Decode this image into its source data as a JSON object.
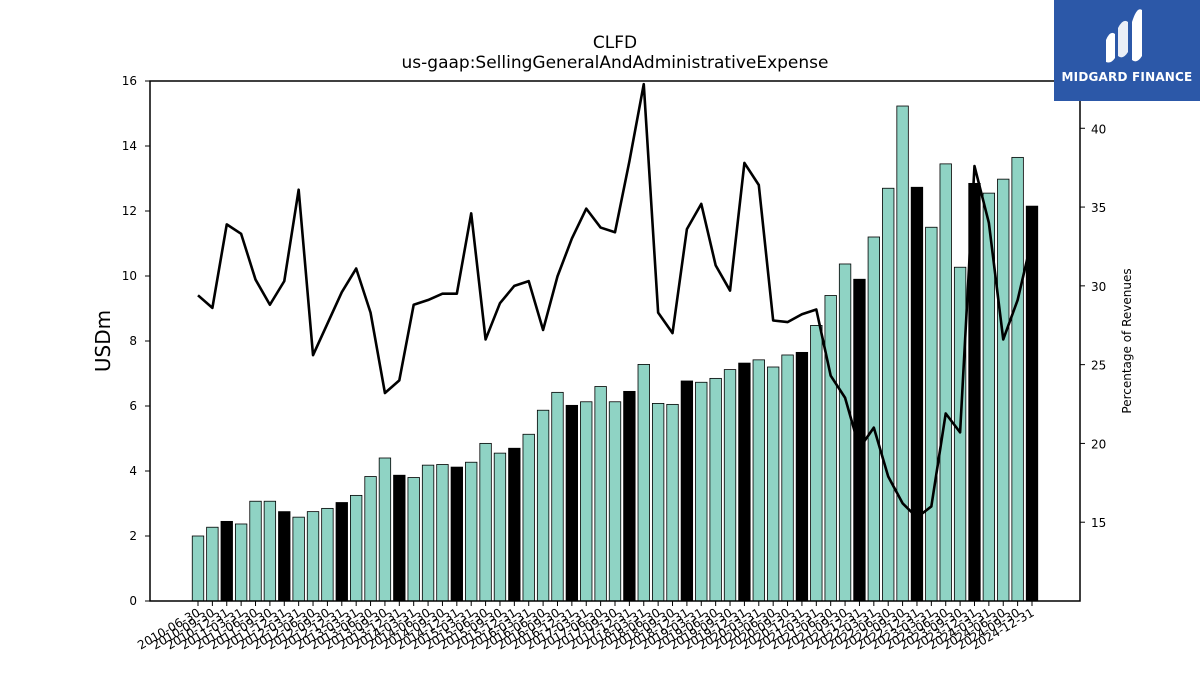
{
  "brand": {
    "name": "MIDGARD FINANCE",
    "bg_color": "#2c58a8"
  },
  "chart_data": {
    "type": "bar",
    "title": "CLFD",
    "subtitle": "us-gaap:SellingGeneralAndAdministrativeExpense",
    "ylabel": "USDm",
    "y2label": "Percentage of Revenues",
    "ylim": [
      0,
      16
    ],
    "y2lim": [
      10,
      43
    ],
    "yticks": [
      0,
      2,
      4,
      6,
      8,
      10,
      12,
      14,
      16
    ],
    "y2ticks": [
      15,
      20,
      25,
      30,
      35,
      40
    ],
    "categories": [
      "2010-06-30",
      "2010-09-30",
      "2010-12-31",
      "2011-03-31",
      "2011-06-30",
      "2011-09-30",
      "2011-12-31",
      "2012-03-31",
      "2012-06-30",
      "2012-09-30",
      "2012-12-31",
      "2013-03-31",
      "2013-06-30",
      "2013-09-30",
      "2013-12-31",
      "2014-03-31",
      "2014-06-30",
      "2014-09-30",
      "2014-12-31",
      "2015-03-31",
      "2015-06-30",
      "2015-09-30",
      "2015-12-31",
      "2016-03-31",
      "2016-06-30",
      "2016-09-30",
      "2016-12-31",
      "2017-03-31",
      "2017-06-30",
      "2017-09-30",
      "2017-12-31",
      "2018-03-31",
      "2018-06-30",
      "2018-09-30",
      "2018-12-31",
      "2019-03-31",
      "2019-06-30",
      "2019-09-30",
      "2019-12-31",
      "2020-03-31",
      "2020-06-30",
      "2020-09-30",
      "2020-12-31",
      "2021-03-31",
      "2021-06-30",
      "2021-09-30",
      "2021-12-31",
      "2022-03-31",
      "2022-06-30",
      "2022-09-30",
      "2022-12-31",
      "2023-03-31",
      "2023-06-30",
      "2023-09-30",
      "2023-12-31",
      "2024-03-31",
      "2024-06-30",
      "2024-09-30",
      "2024-12-31"
    ],
    "series": [
      {
        "kind": "bar",
        "unit": "USDm",
        "values": [
          2.0,
          2.27,
          2.45,
          2.37,
          3.07,
          3.07,
          2.75,
          2.58,
          2.75,
          2.85,
          3.03,
          3.25,
          3.83,
          4.4,
          3.87,
          3.8,
          4.18,
          4.2,
          4.12,
          4.27,
          4.85,
          4.55,
          4.7,
          5.13,
          5.87,
          6.42,
          6.02,
          6.13,
          6.6,
          6.13,
          6.45,
          7.28,
          6.08,
          6.05,
          6.77,
          6.73,
          6.85,
          7.12,
          7.32,
          7.42,
          7.2,
          7.57,
          7.65,
          8.48,
          9.4,
          10.37,
          9.9,
          11.2,
          12.7,
          15.23,
          12.73,
          11.5,
          13.45,
          10.27,
          12.85,
          12.55,
          12.98,
          13.65,
          12.15
        ],
        "highlight": [
          false,
          false,
          true,
          false,
          false,
          false,
          true,
          false,
          false,
          false,
          true,
          false,
          false,
          false,
          true,
          false,
          false,
          false,
          true,
          false,
          false,
          false,
          true,
          false,
          false,
          false,
          true,
          false,
          false,
          false,
          true,
          false,
          false,
          false,
          true,
          false,
          false,
          false,
          true,
          false,
          false,
          false,
          true,
          false,
          false,
          false,
          true,
          false,
          false,
          false,
          true,
          false,
          false,
          false,
          true,
          false,
          false,
          false,
          true
        ]
      },
      {
        "kind": "line",
        "unit": "Percentage of Revenues",
        "values": [
          29.4,
          28.6,
          33.9,
          33.3,
          30.4,
          28.8,
          30.3,
          36.1,
          25.6,
          27.6,
          29.6,
          31.1,
          28.3,
          23.2,
          24,
          28.8,
          29.1,
          29.5,
          29.5,
          34.6,
          26.6,
          28.9,
          30,
          30.3,
          27.2,
          30.6,
          33,
          34.9,
          33.7,
          33.4,
          37.9,
          42.8,
          28.3,
          27,
          33.6,
          35.2,
          31.3,
          29.7,
          37.8,
          36.4,
          27.8,
          27.7,
          28.2,
          28.5,
          24.3,
          22.9,
          19.7,
          21,
          17.9,
          16.2,
          15.3,
          16,
          21.9,
          20.7,
          37.6,
          34,
          26.6,
          29.1,
          33
        ]
      }
    ],
    "colors": {
      "bar": "#8fd3c4",
      "bar_highlight": "#000000",
      "line": "#000000",
      "edge": "#000000"
    },
    "grid": false,
    "legend": "none"
  }
}
